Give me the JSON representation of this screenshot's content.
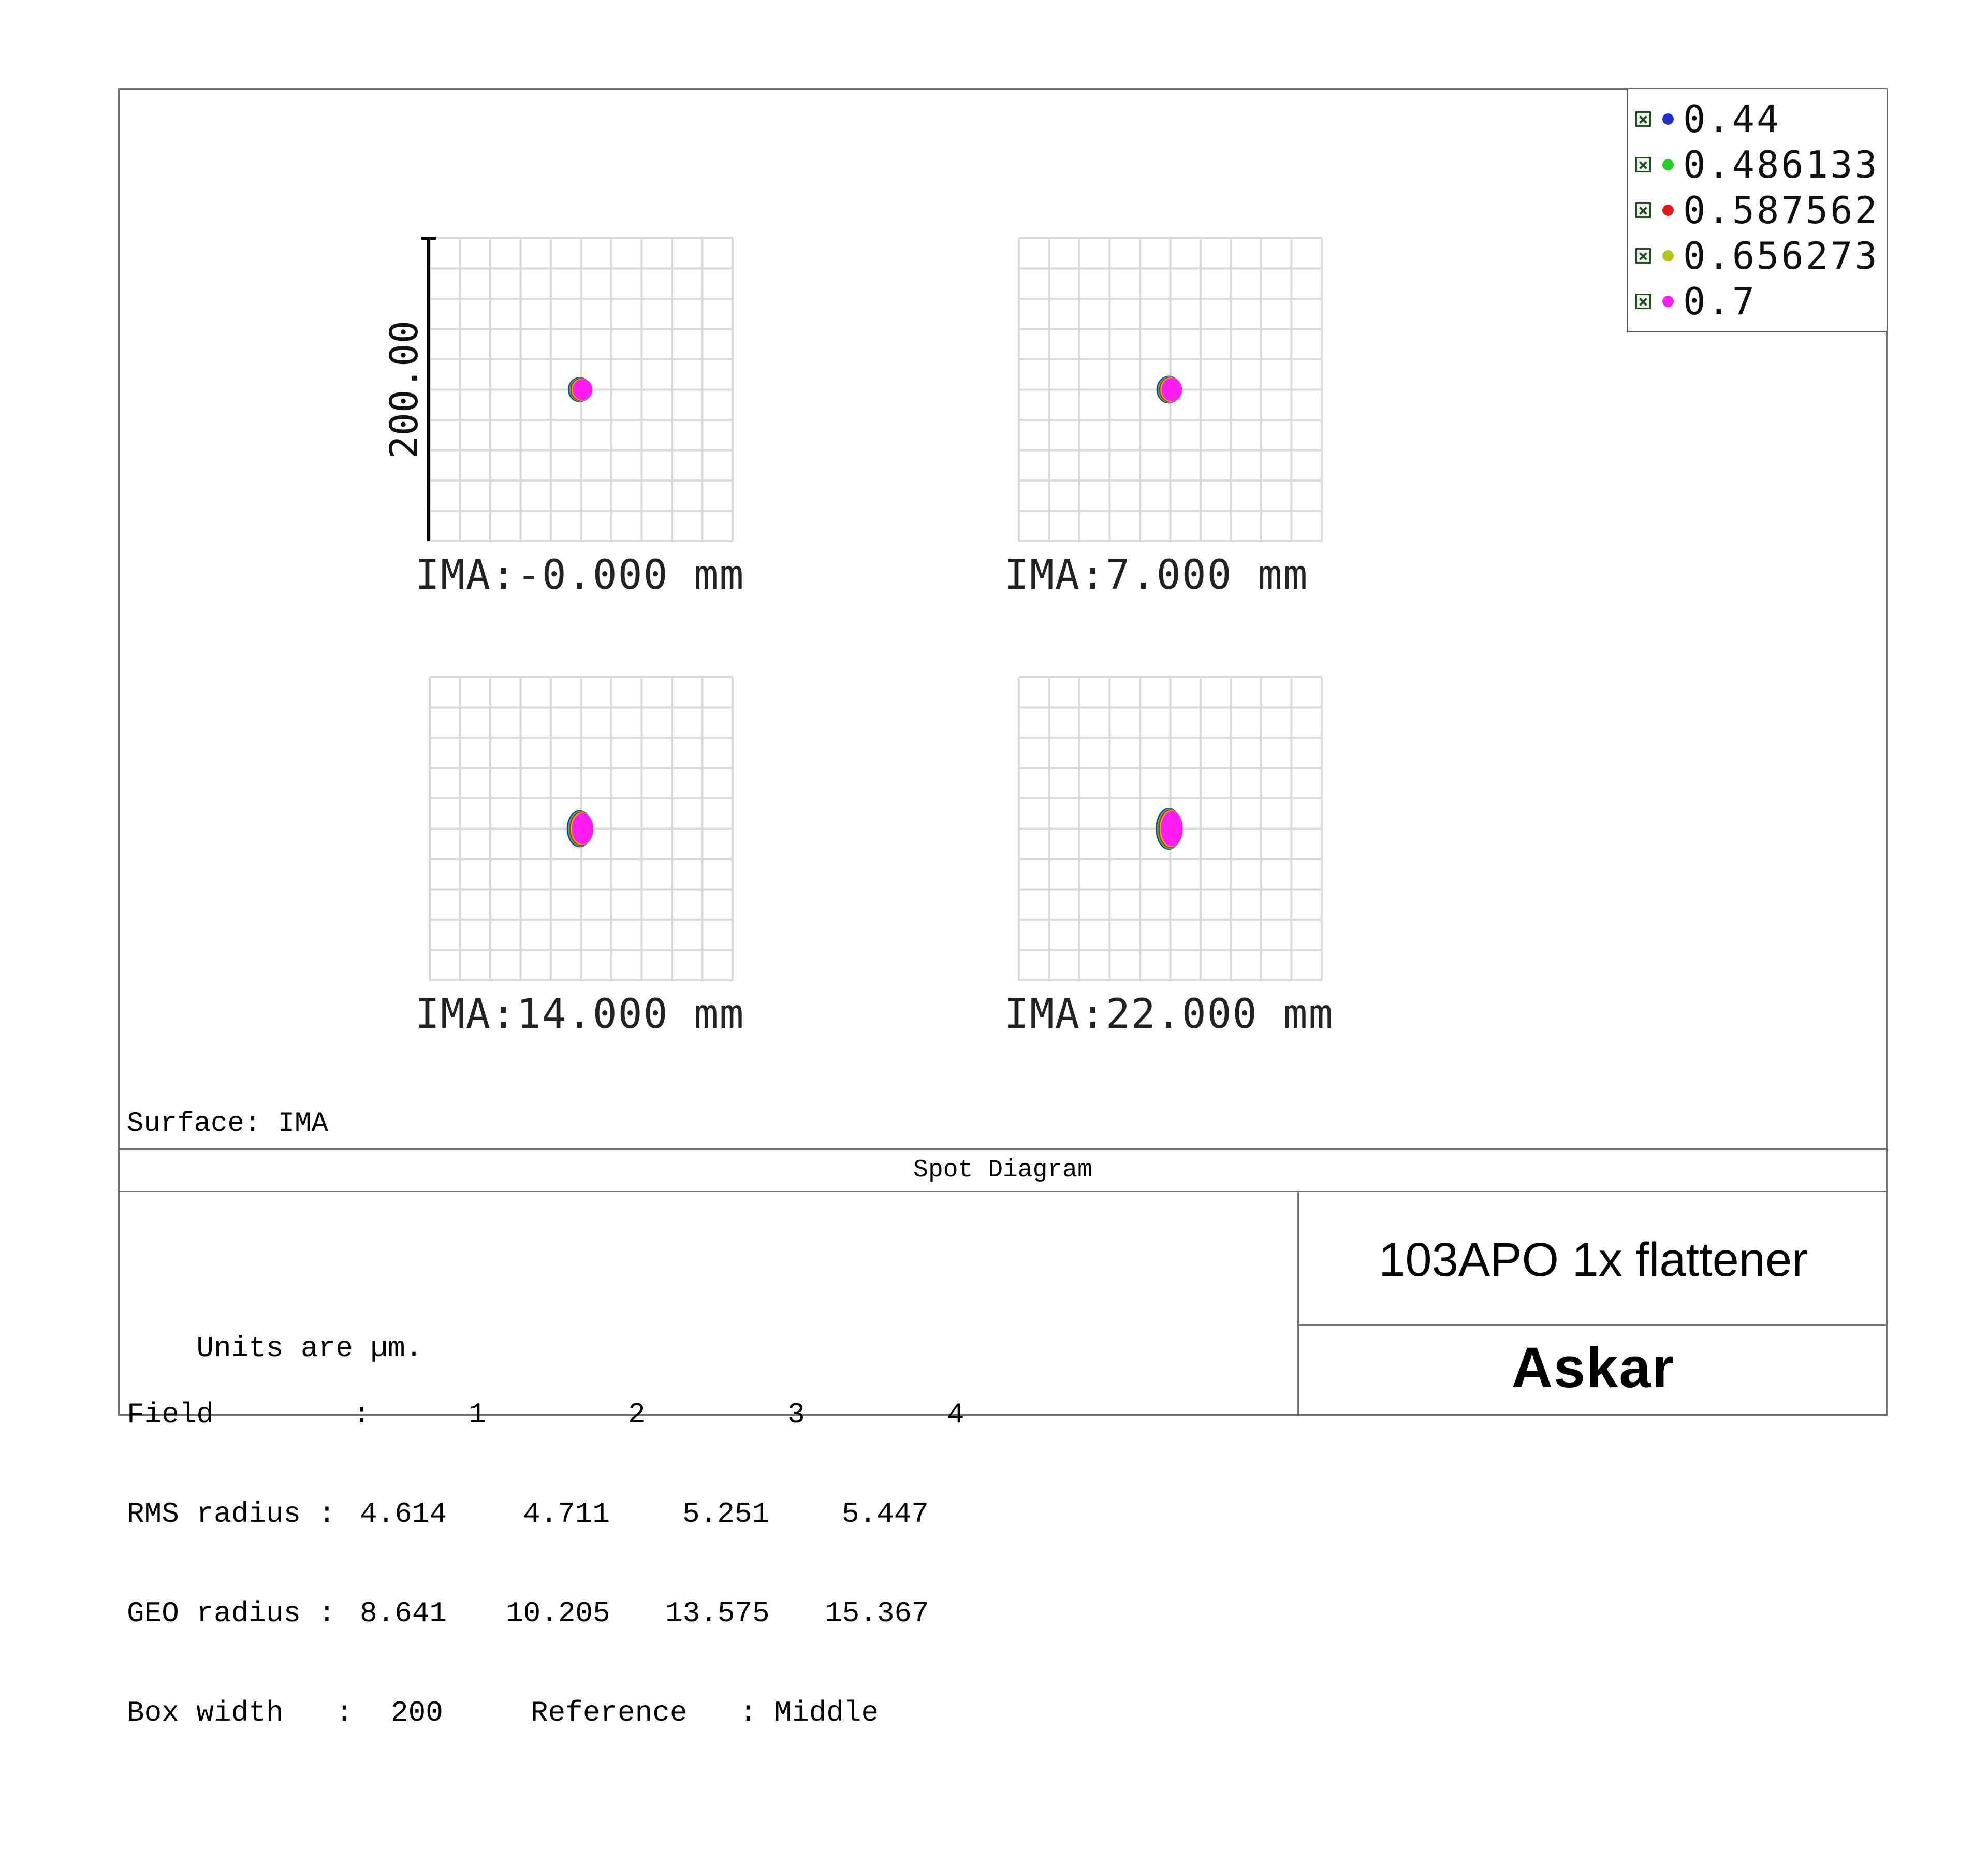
{
  "chart_data": {
    "type": "scatter",
    "title": "Spot Diagram",
    "scale_bar": "200.00",
    "fields": [
      {
        "label": "IMA:",
        "value": "-0.000 mm",
        "spot": {
          "rx_um": 8.6,
          "ry_um": 9.2
        }
      },
      {
        "label": "IMA:",
        "value": "7.000 mm",
        "spot": {
          "rx_um": 9.0,
          "ry_um": 10.2
        }
      },
      {
        "label": "IMA:",
        "value": "14.000 mm",
        "spot": {
          "rx_um": 9.4,
          "ry_um": 13.6
        }
      },
      {
        "label": "IMA:",
        "value": "22.000 mm",
        "spot": {
          "rx_um": 9.6,
          "ry_um": 15.4
        }
      }
    ],
    "box_width_um": 200,
    "grid": true,
    "legend": {
      "placement": "top-right",
      "entries": [
        {
          "label": "0.44",
          "color": "#1c2fd6"
        },
        {
          "label": "0.486133",
          "color": "#22d122"
        },
        {
          "label": "0.587562",
          "color": "#e01818"
        },
        {
          "label": "0.656273",
          "color": "#b8c21c"
        },
        {
          "label": "0.7",
          "color": "#ff1cf0"
        }
      ]
    }
  },
  "surface_label": "Surface: IMA",
  "info": {
    "units": "Units are µm.",
    "field_label": "Field        :",
    "field_numbers": [
      "1",
      "2",
      "3",
      "4"
    ],
    "rms_label": "RMS radius :",
    "rms_values": [
      "4.614",
      "4.711",
      "5.251",
      "5.447"
    ],
    "geo_label": "GEO radius :",
    "geo_values": [
      "8.641",
      "10.205",
      "13.575",
      "15.367"
    ],
    "box_label": "Box width   :",
    "box_value": "200",
    "reference": "Reference   : Middle"
  },
  "design_title": "103APO 1x flattener",
  "brand": "Askar"
}
